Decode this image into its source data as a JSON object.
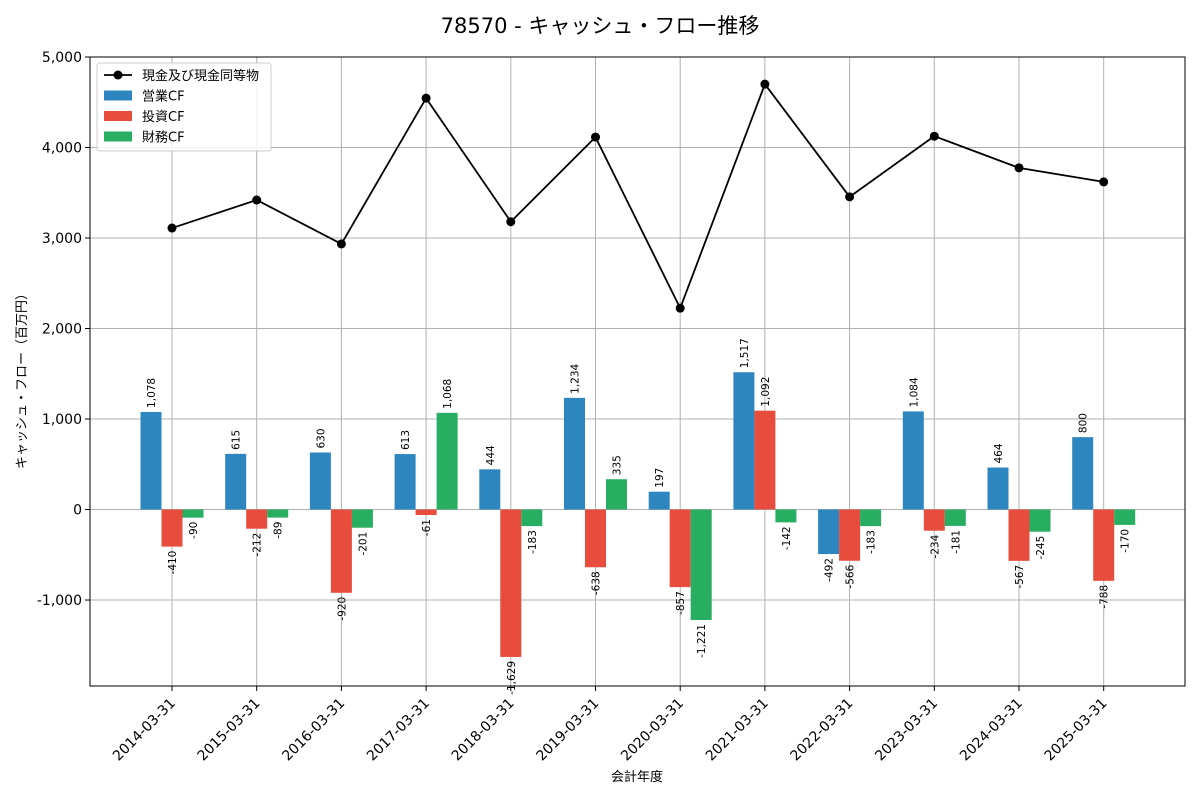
{
  "chart_data": {
    "type": "bar",
    "title": "78570 - キャッシュ・フロー推移",
    "xlabel": "会計年度",
    "ylabel": "キャッシュ・フロー（百万円）",
    "categories": [
      "2014-03-31",
      "2015-03-31",
      "2016-03-31",
      "2017-03-31",
      "2018-03-31",
      "2019-03-31",
      "2020-03-31",
      "2021-03-31",
      "2022-03-31",
      "2023-03-31",
      "2024-03-31",
      "2025-03-31"
    ],
    "ylim": [
      -1950,
      5000
    ],
    "yticks": [
      -1000,
      0,
      1000,
      2000,
      3000,
      4000,
      5000
    ],
    "ytick_labels": [
      "-1,000",
      "0",
      "1,000",
      "2,000",
      "3,000",
      "4,000",
      "5,000"
    ],
    "grid": true,
    "legend_position": "top-left",
    "series": [
      {
        "name": "営業CF",
        "kind": "bar",
        "color": "#2e86c1",
        "values": [
          1078,
          615,
          630,
          613,
          444,
          1234,
          197,
          1517,
          -492,
          1084,
          464,
          800
        ],
        "labels": [
          "1,078",
          "615",
          "630",
          "613",
          "444",
          "1,234",
          "197",
          "1,517",
          "-492",
          "1,084",
          "464",
          "800"
        ]
      },
      {
        "name": "投資CF",
        "kind": "bar",
        "color": "#e74c3c",
        "values": [
          -410,
          -212,
          -920,
          -61,
          -1629,
          -638,
          -857,
          1092,
          -566,
          -234,
          -567,
          -788
        ],
        "labels": [
          "-410",
          "-212",
          "-920",
          "-61",
          "-1,629",
          "-638",
          "-857",
          "1,092",
          "-566",
          "-234",
          "-567",
          "-788"
        ]
      },
      {
        "name": "財務CF",
        "kind": "bar",
        "color": "#27ae60",
        "values": [
          -90,
          -89,
          -201,
          1068,
          -183,
          335,
          -1221,
          -142,
          -183,
          -181,
          -245,
          -170
        ],
        "labels": [
          "-90",
          "-89",
          "-201",
          "1,068",
          "-183",
          "335",
          "-1,221",
          "-142",
          "-183",
          "-181",
          "-245",
          "-170"
        ]
      },
      {
        "name": "現金及び現金同等物",
        "kind": "line",
        "color": "#000000",
        "values": [
          3110,
          3420,
          2935,
          4545,
          3180,
          4115,
          2225,
          4700,
          3455,
          4125,
          3775,
          3620
        ]
      }
    ]
  }
}
